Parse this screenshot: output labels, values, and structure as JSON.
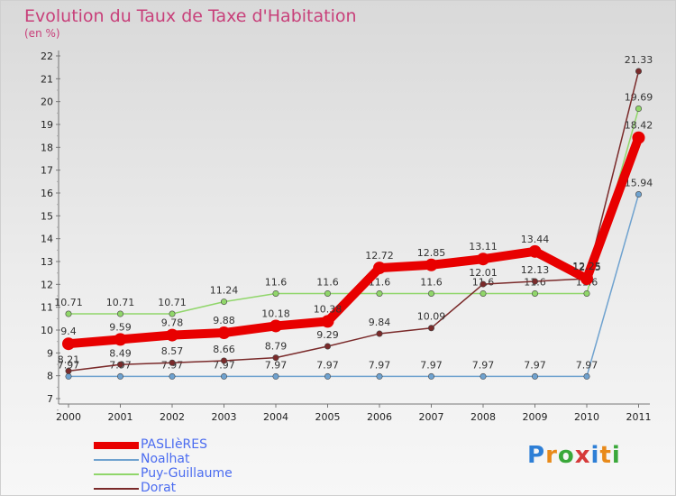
{
  "title": "Evolution du Taux de Taxe d'Habitation",
  "unit": "(en %)",
  "logo": {
    "text": "Proxiti",
    "colors": [
      "#2e7fd6",
      "#e88a1a",
      "#3aa83a",
      "#d63a3a",
      "#2e7fd6",
      "#e88a1a",
      "#3aa83a"
    ]
  },
  "chart_data": {
    "type": "line",
    "x": [
      "2000",
      "2001",
      "2002",
      "2003",
      "2004",
      "2005",
      "2006",
      "2007",
      "2008",
      "2009",
      "2010",
      "2011"
    ],
    "ylim": [
      7,
      22
    ],
    "yticks": [
      7,
      8,
      9,
      10,
      11,
      12,
      13,
      14,
      15,
      16,
      17,
      18,
      19,
      20,
      21,
      22
    ],
    "grid": false,
    "legend_position": "bottom-left",
    "series": [
      {
        "name": "PASLIèRES",
        "color": "#e80000",
        "values": [
          9.4,
          9.59,
          9.78,
          9.88,
          10.18,
          10.38,
          12.72,
          12.85,
          13.11,
          13.44,
          12.25,
          18.42
        ],
        "labels": [
          "9.4",
          "9.59",
          "9.78",
          "9.88",
          "10.18",
          "10.38",
          "12.72",
          "12.85",
          "13.11",
          "13.44",
          "12.25",
          "18.42"
        ]
      },
      {
        "name": "Noalhat",
        "color": "#6fa2cf",
        "values": [
          7.97,
          7.97,
          7.97,
          7.97,
          7.97,
          7.97,
          7.97,
          7.97,
          7.97,
          7.97,
          7.97,
          15.94
        ],
        "labels": [
          "7.97",
          "7.97",
          "7.97",
          "7.97",
          "7.97",
          "7.97",
          "7.97",
          "7.97",
          "7.97",
          "7.97",
          "7.97",
          "15.94"
        ]
      },
      {
        "name": "Puy-Guillaume",
        "color": "#90d66a",
        "values": [
          10.71,
          10.71,
          10.71,
          11.24,
          11.6,
          11.6,
          11.6,
          11.6,
          11.6,
          11.6,
          11.6,
          19.69
        ],
        "labels": [
          "10.71",
          "10.71",
          "10.71",
          "11.24",
          "11.6",
          "11.6",
          "11.6",
          "11.6",
          "11.6",
          "11.6",
          "11.6",
          "19.69"
        ]
      },
      {
        "name": "Dorat",
        "color": "#7a2a2a",
        "values": [
          8.21,
          8.49,
          8.57,
          8.66,
          8.79,
          9.29,
          9.84,
          10.09,
          12.01,
          12.13,
          12.25,
          21.33
        ],
        "labels": [
          "8.21",
          "8.49",
          "8.57",
          "8.66",
          "8.79",
          "9.29",
          "9.84",
          "10.09",
          "12.01",
          "12.13",
          "12.25",
          "21.33"
        ]
      }
    ]
  }
}
